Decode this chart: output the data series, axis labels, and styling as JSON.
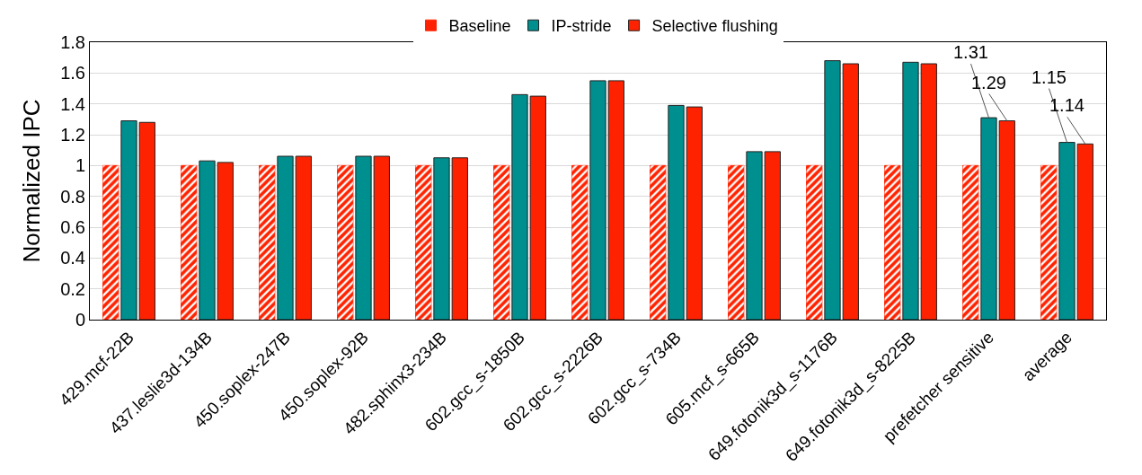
{
  "chart_data": {
    "type": "bar",
    "ylabel": "Normalized IPC",
    "categories": [
      "429.mcf-22B",
      "437.leslie3d-134B",
      "450.soplex-247B",
      "450.soplex-92B",
      "482.sphinx3-234B",
      "602.gcc_s-1850B",
      "602.gcc_s-2226B",
      "602.gcc_s-734B",
      "605.mcf_s-665B",
      "649.fotonik3d_s-1176B",
      "649.fotonik3d_s-8225B",
      "prefetcher sensitive",
      "average"
    ],
    "series": [
      {
        "name": "Baseline",
        "color": "#ff2200",
        "values": [
          1,
          1,
          1,
          1,
          1,
          1,
          1,
          1,
          1,
          1,
          1,
          1,
          1
        ]
      },
      {
        "name": "IP-stride",
        "color": "#008f8f",
        "values": [
          1.29,
          1.03,
          1.06,
          1.06,
          1.05,
          1.46,
          1.55,
          1.39,
          1.09,
          1.68,
          1.67,
          1.31,
          1.15
        ],
        "value_labels": [
          null,
          null,
          null,
          null,
          null,
          null,
          null,
          null,
          null,
          null,
          null,
          "1.31",
          "1.15"
        ]
      },
      {
        "name": "Selective flushing",
        "color": "#ff2200",
        "values": [
          1.28,
          1.02,
          1.06,
          1.06,
          1.05,
          1.45,
          1.55,
          1.38,
          1.09,
          1.66,
          1.66,
          1.29,
          1.14
        ],
        "value_labels": [
          null,
          null,
          null,
          null,
          null,
          null,
          null,
          null,
          null,
          null,
          null,
          "1.29",
          "1.14"
        ]
      }
    ],
    "ylim": [
      0,
      1.8
    ],
    "yticks": [
      0,
      0.2,
      0.4,
      0.6,
      0.8,
      1,
      1.2,
      1.4,
      1.6,
      1.8
    ],
    "grid": "y",
    "legend": "top"
  }
}
